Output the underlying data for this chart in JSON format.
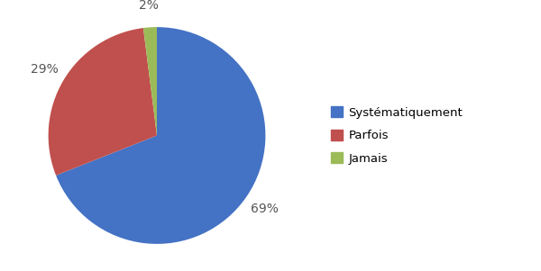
{
  "labels": [
    "Systématiquement",
    "Parfois",
    "Jamais"
  ],
  "values": [
    69,
    29,
    2
  ],
  "colors": [
    "#4472C4",
    "#C0504D",
    "#9BBB59"
  ],
  "pct_labels": [
    "69%",
    "29%",
    "2%"
  ],
  "legend_labels": [
    "Systématiquement",
    "Parfois",
    "Jamais"
  ],
  "startangle": 90,
  "background_color": "#ffffff",
  "pct_fontsize": 10,
  "legend_fontsize": 9.5
}
